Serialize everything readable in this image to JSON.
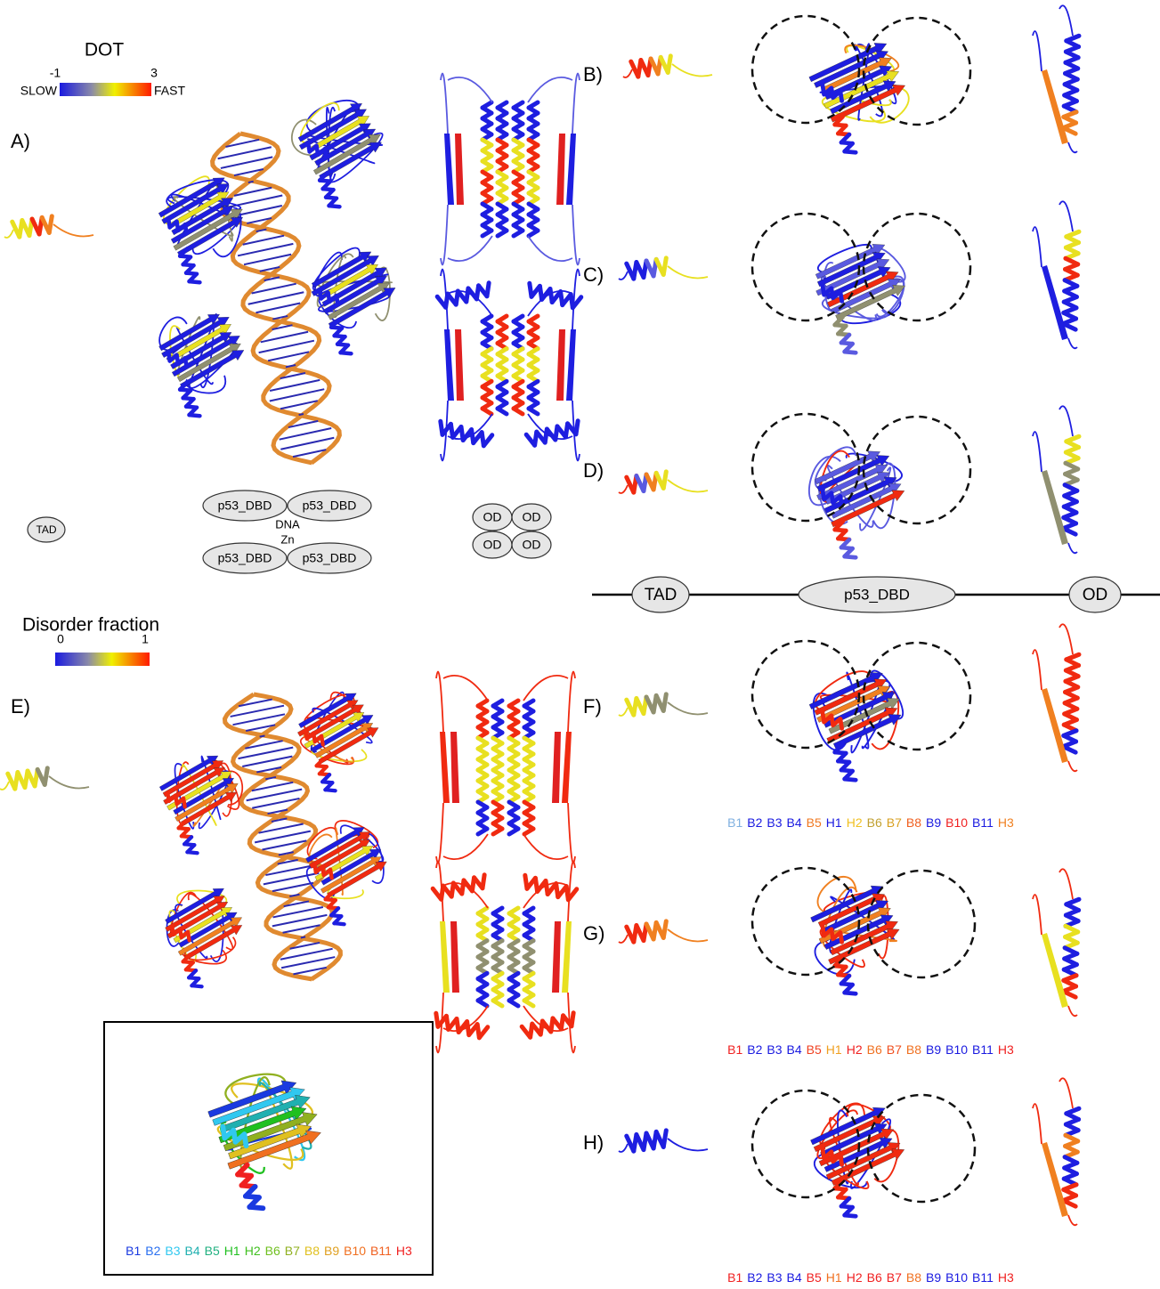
{
  "dot_scale": {
    "title": "DOT",
    "min": "-1",
    "max": "3",
    "slow": "SLOW",
    "fast": "FAST"
  },
  "disorder_scale": {
    "title": "Disorder fraction",
    "min": "0",
    "max": "1"
  },
  "panels": {
    "A": "A)",
    "B": "B)",
    "C": "C)",
    "D": "D)",
    "E": "E)",
    "F": "F)",
    "G": "G)",
    "H": "H)"
  },
  "schematic": {
    "tad": "TAD",
    "dbd": [
      "p53_DBD",
      "p53_DBD",
      "p53_DBD",
      "p53_DBD"
    ],
    "dna": "DNA",
    "zn": "Zn",
    "od": [
      "OD",
      "OD",
      "OD",
      "OD"
    ]
  },
  "domain_bar": {
    "tad": "TAD",
    "dbd": "p53_DBD",
    "od": "OD"
  },
  "legends": {
    "F": [
      {
        "text": "B1",
        "color": "#7fb0e0"
      },
      {
        "text": "B2",
        "color": "#1a1ae0"
      },
      {
        "text": "B3",
        "color": "#1a1ae0"
      },
      {
        "text": "B4",
        "color": "#1a1ae0"
      },
      {
        "text": "B5",
        "color": "#f07820"
      },
      {
        "text": "H1",
        "color": "#1a1ae0"
      },
      {
        "text": "H2",
        "color": "#f0c020"
      },
      {
        "text": "B6",
        "color": "#c0a030"
      },
      {
        "text": "B7",
        "color": "#d8a020"
      },
      {
        "text": "B8",
        "color": "#f06020"
      },
      {
        "text": "B9",
        "color": "#1a1ae0"
      },
      {
        "text": "B10",
        "color": "#f02020"
      },
      {
        "text": "B11",
        "color": "#1a1ae0"
      },
      {
        "text": "H3",
        "color": "#f08020"
      }
    ],
    "G": [
      {
        "text": "B1",
        "color": "#f02020"
      },
      {
        "text": "B2",
        "color": "#1a1ae0"
      },
      {
        "text": "B3",
        "color": "#1a1ae0"
      },
      {
        "text": "B4",
        "color": "#1a1ae0"
      },
      {
        "text": "B5",
        "color": "#f04020"
      },
      {
        "text": "H1",
        "color": "#f0a020"
      },
      {
        "text": "H2",
        "color": "#f02020"
      },
      {
        "text": "B6",
        "color": "#f07020"
      },
      {
        "text": "B7",
        "color": "#f05020"
      },
      {
        "text": "B8",
        "color": "#f07020"
      },
      {
        "text": "B9",
        "color": "#1a1ae0"
      },
      {
        "text": "B10",
        "color": "#1a1ae0"
      },
      {
        "text": "B11",
        "color": "#1a1ae0"
      },
      {
        "text": "H3",
        "color": "#f02020"
      }
    ],
    "H": [
      {
        "text": "B1",
        "color": "#f02020"
      },
      {
        "text": "B2",
        "color": "#1a1ae0"
      },
      {
        "text": "B3",
        "color": "#1a1ae0"
      },
      {
        "text": "B4",
        "color": "#1a1ae0"
      },
      {
        "text": "B5",
        "color": "#f02020"
      },
      {
        "text": "H1",
        "color": "#f07020"
      },
      {
        "text": "H2",
        "color": "#f02020"
      },
      {
        "text": "B6",
        "color": "#f02020"
      },
      {
        "text": "B7",
        "color": "#f02020"
      },
      {
        "text": "B8",
        "color": "#f07020"
      },
      {
        "text": "B9",
        "color": "#1a1ae0"
      },
      {
        "text": "B10",
        "color": "#1a1ae0"
      },
      {
        "text": "B11",
        "color": "#1a1ae0"
      },
      {
        "text": "H3",
        "color": "#f02020"
      }
    ],
    "inset": [
      {
        "text": "B1",
        "color": "#1a3ae0"
      },
      {
        "text": "B2",
        "color": "#2a70f0"
      },
      {
        "text": "B3",
        "color": "#30c8f0"
      },
      {
        "text": "B4",
        "color": "#20b0b0"
      },
      {
        "text": "B5",
        "color": "#20b080"
      },
      {
        "text": "H1",
        "color": "#20c020"
      },
      {
        "text": "H2",
        "color": "#40c020"
      },
      {
        "text": "B6",
        "color": "#70c020"
      },
      {
        "text": "B7",
        "color": "#90b020"
      },
      {
        "text": "B8",
        "color": "#e0c020"
      },
      {
        "text": "B9",
        "color": "#e0a020"
      },
      {
        "text": "B10",
        "color": "#f07020"
      },
      {
        "text": "B11",
        "color": "#f06020"
      },
      {
        "text": "H3",
        "color": "#f02020"
      }
    ]
  }
}
